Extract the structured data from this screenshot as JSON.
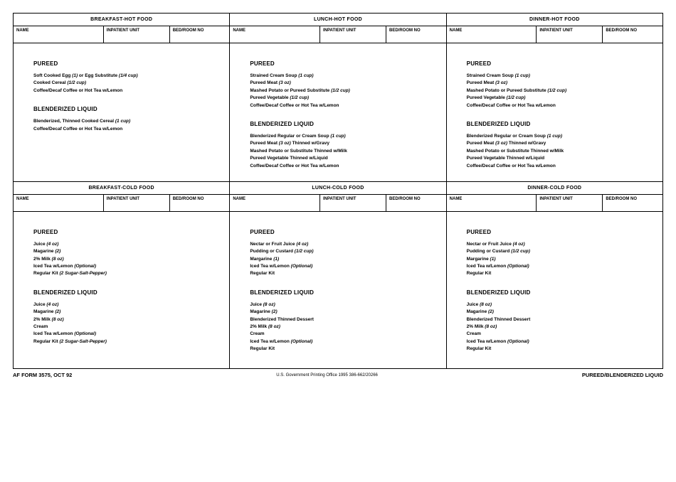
{
  "labels": {
    "name": "NAME",
    "unit": "INPATIENT UNIT",
    "room": "BED/ROOM NO",
    "pureed": "PUREED",
    "blenderized": "BLENDERIZED LIQUID"
  },
  "hot": [
    {
      "title": "BREAKFAST-HOT FOOD",
      "pureed": [
        {
          "t": "Soft Cooked Egg",
          "p": " (1)",
          "t2": " or Egg Substitute",
          "p2": " (1/4 cup)"
        },
        {
          "t": "Cooked Cereal ",
          "p": "(1/2 cup)"
        },
        {
          "t": "Coffee/Decaf Coffee or Hot Tea w/Lemon"
        }
      ],
      "blend": [
        {
          "t": "Blenderized, Thinned Cooked Cereal",
          "p": " (1 cup)"
        },
        {
          "t": "Coffee/Decaf Coffee or Hot Tea w/Lemon"
        }
      ]
    },
    {
      "title": "LUNCH-HOT FOOD",
      "pureed": [
        {
          "t": "Strained Cream Soup",
          "p": " (1 cup)"
        },
        {
          "t": "Pureed Meat",
          "p": " (3 oz)"
        },
        {
          "t": "Mashed Potato or Pureed Substitute",
          "p": " (1/2 cup)"
        },
        {
          "t": "Pureed Vegetable  ",
          "p": "(1/2 cup)"
        },
        {
          "t": "Coffee/Decaf Coffee or Hot Tea w/Lemon"
        }
      ],
      "blend": [
        {
          "t": "Blenderized Regular or Cream Soup",
          "p": " (1 cup)"
        },
        {
          "t": "Pureed Meat",
          "p": " (3 oz)",
          "t2": " Thinned w/Gravy"
        },
        {
          "t": "Mashed Potato or Substitute Thinned w/Milk"
        },
        {
          "t": "Pureed Vegetable Thinned w/Liquid"
        },
        {
          "t": "Coffee/Decaf Coffee or Hot Tea w/Lemon"
        }
      ]
    },
    {
      "title": "DINNER-HOT FOOD",
      "pureed": [
        {
          "t": "Strained Cream Soup",
          "p": " (1 cup)"
        },
        {
          "t": "Pureed Meat",
          "p": " (3 oz)"
        },
        {
          "t": "Mashed Potato or Pureed Substitute",
          "p": " (1/2 cup)"
        },
        {
          "t": "Pureed Vegetable  ",
          "p": "(1/2 cup)"
        },
        {
          "t": "Coffee/Decaf Coffee or Hot Tea w/Lemon"
        }
      ],
      "blend": [
        {
          "t": "Blenderized Regular or Cream Soup ",
          "p": " (1 cup)"
        },
        {
          "t": "Pureed Meat  ",
          "p": "(3 oz)",
          "t2": "  Thinned w/Gravy"
        },
        {
          "t": "Mashed Potato or Substitute Thinned w/Milk"
        },
        {
          "t": "Pureed Vegetable Thinned w/Liquid"
        },
        {
          "t": "Coffee/Decaf Coffee or Hot Tea w/Lemon"
        }
      ]
    }
  ],
  "cold": [
    {
      "title": "BREAKFAST-COLD FOOD",
      "pureed": [
        {
          "t": "Juice",
          "p": " (4 oz)"
        },
        {
          "t": "Magarine",
          "p": " (2)"
        },
        {
          "t": "2% Milk ",
          "p": " (8 oz)"
        },
        {
          "t": "Iced Tea w/Lemon",
          "p": " (Optional)"
        },
        {
          "t": "Regular Kit",
          "p": " (2 Sugar-Salt-Pepper)"
        }
      ],
      "blend": [
        {
          "t": "Juice",
          "p": " (4 oz)"
        },
        {
          "t": "Magarine",
          "p": " (2)"
        },
        {
          "t": "2% Milk",
          "p": " (8 oz)"
        },
        {
          "t": "Cream"
        },
        {
          "t": "Iced Tea w/Lemon",
          "p": " (Optional)"
        },
        {
          "t": "Regular Kit",
          "p": " (2 Sugar-Salt-Pepper)"
        }
      ]
    },
    {
      "title": "LUNCH-COLD FOOD",
      "pureed": [
        {
          "t": "Nectar or Fruit Juice ",
          "p": " (4 oz)"
        },
        {
          "t": "Pudding or Custard",
          "p": " (1/2 cup)"
        },
        {
          "t": "Margarine",
          "p": " (1)"
        },
        {
          "t": "Iced Tea w/Lemon",
          "p": " (Optional)"
        },
        {
          "t": "Regular Kit"
        }
      ],
      "blend": [
        {
          "t": "Juice ",
          "p": " (8 oz)"
        },
        {
          "t": "Magarine",
          "p": " (2)"
        },
        {
          "t": "Blenderized Thinned Dessert"
        },
        {
          "t": "2% Milk ",
          "p": " (8 oz)"
        },
        {
          "t": "Cream"
        },
        {
          "t": "Iced Tea w/Lemon",
          "p": " (Optional)"
        },
        {
          "t": "Regular Kit"
        }
      ]
    },
    {
      "title": "DINNER-COLD FOOD",
      "pureed": [
        {
          "t": "Nectar or Fruit Juice",
          "p": " (4 oz)"
        },
        {
          "t": "Pudding or Custard",
          "p": " (1/2 cup)"
        },
        {
          "t": "Margarine",
          "p": " (1)"
        },
        {
          "t": "Iced Tea w/Lemon",
          "p": " (Optional)"
        },
        {
          "t": "Regular Kit"
        }
      ],
      "blend": [
        {
          "t": "Juice ",
          "p": " (8 oz)"
        },
        {
          "t": "Magarine",
          "p": " (2)"
        },
        {
          "t": "Blenderized Thinned Dessert"
        },
        {
          "t": "2% Milk",
          "p": " (8 oz)"
        },
        {
          "t": "Cream"
        },
        {
          "t": "Iced Tea w/Lemon",
          "p": " (Optional)"
        },
        {
          "t": "Regular Kit"
        }
      ]
    }
  ],
  "footer": {
    "left": "AF FORM 3575, OCT 92",
    "center": "U.S. Government Printing Office 1995 386-662/20266",
    "right": "PUREED/BLENDERIZED LIQUID"
  }
}
